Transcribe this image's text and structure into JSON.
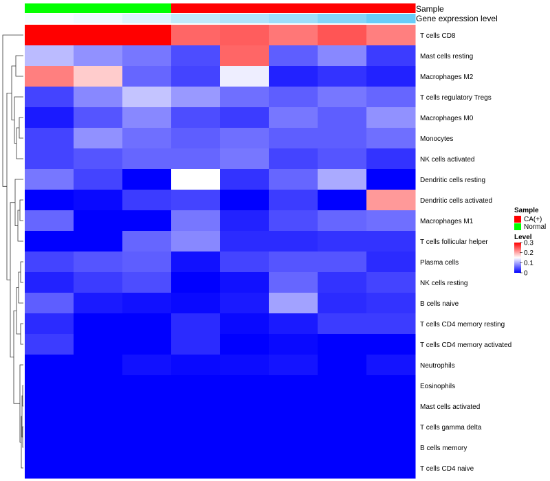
{
  "chart_data": {
    "type": "heatmap",
    "annotations": {
      "sample": {
        "label": "Sample",
        "values": [
          "Normal",
          "Normal",
          "Normal",
          "CA(+)",
          "CA(+)",
          "CA(+)",
          "CA(+)",
          "CA(+)"
        ]
      },
      "gene_expression": {
        "label": "Gene expression level",
        "values": [
          0.05,
          0.1,
          0.2,
          0.35,
          0.45,
          0.55,
          0.7,
          0.85
        ]
      }
    },
    "rows": [
      "T cells CD8",
      "Mast cells resting",
      "Macrophages M2",
      "T cells regulatory  Tregs",
      "Macrophages M0",
      "Monocytes",
      "NK cells activated",
      "Dendritic cells resting",
      "Dendritic cells activated",
      "Macrophages M1",
      "T cells follicular helper",
      "Plasma cells",
      "NK cells resting",
      "B cells naive",
      "T cells CD4 memory resting",
      "T cells CD4 memory activated",
      "Neutrophils",
      "Eosinophils",
      "Mast cells activated",
      "T cells gamma delta",
      "B cells memory",
      "T cells CD4 naive"
    ],
    "values": [
      [
        0.3,
        0.3,
        0.3,
        0.24,
        0.245,
        0.23,
        0.25,
        0.225
      ],
      [
        0.11,
        0.085,
        0.07,
        0.045,
        0.24,
        0.055,
        0.08,
        0.035
      ],
      [
        0.225,
        0.18,
        0.06,
        0.04,
        0.14,
        0.02,
        0.03,
        0.02
      ],
      [
        0.04,
        0.08,
        0.115,
        0.09,
        0.065,
        0.055,
        0.07,
        0.06
      ],
      [
        0.015,
        0.05,
        0.08,
        0.045,
        0.035,
        0.07,
        0.055,
        0.085
      ],
      [
        0.04,
        0.085,
        0.065,
        0.055,
        0.065,
        0.055,
        0.055,
        0.065
      ],
      [
        0.04,
        0.05,
        0.06,
        0.06,
        0.07,
        0.04,
        0.05,
        0.03
      ],
      [
        0.07,
        0.04,
        0.0,
        0.15,
        0.03,
        0.06,
        0.1,
        0.0
      ],
      [
        0.0,
        0.005,
        0.035,
        0.04,
        0.0,
        0.035,
        0.0,
        0.21
      ],
      [
        0.06,
        0.0,
        0.0,
        0.07,
        0.02,
        0.045,
        0.06,
        0.065
      ],
      [
        0.0,
        0.0,
        0.06,
        0.08,
        0.025,
        0.025,
        0.03,
        0.03
      ],
      [
        0.04,
        0.05,
        0.055,
        0.01,
        0.04,
        0.05,
        0.05,
        0.025
      ],
      [
        0.02,
        0.035,
        0.045,
        0.0,
        0.01,
        0.06,
        0.03,
        0.04
      ],
      [
        0.055,
        0.015,
        0.01,
        0.005,
        0.015,
        0.095,
        0.025,
        0.03
      ],
      [
        0.025,
        0.0,
        0.0,
        0.025,
        0.005,
        0.015,
        0.035,
        0.035
      ],
      [
        0.035,
        0.0,
        0.0,
        0.025,
        0.0,
        0.005,
        0.0,
        0.0
      ],
      [
        0.0,
        0.0,
        0.01,
        0.005,
        0.007,
        0.012,
        0.0,
        0.012
      ],
      [
        0.0,
        0.0,
        0.0,
        0.0,
        0.0,
        0.0,
        0.0,
        0.0
      ],
      [
        0.0,
        0.0,
        0.0,
        0.0,
        0.0,
        0.0,
        0.0,
        0.0
      ],
      [
        0.0,
        0.0,
        0.0,
        0.0,
        0.0,
        0.0,
        0.0,
        0.0
      ],
      [
        0.0,
        0.0,
        0.0,
        0.0,
        0.0,
        0.0,
        0.0,
        0.0
      ],
      [
        0.0,
        0.0,
        0.0,
        0.0,
        0.0,
        0.0,
        0.0,
        0.0
      ]
    ],
    "color_scale": {
      "low": "#0000ff",
      "mid": "#ffffff",
      "high": "#ff0000",
      "mid_value": 0.15,
      "range": [
        0,
        0.3
      ]
    },
    "legend": {
      "placement": "right",
      "sample_title": "Sample",
      "sample_entries": [
        {
          "name": "CA(+)",
          "color": "#ff0000"
        },
        {
          "name": "Normal",
          "color": "#00ff00"
        }
      ],
      "level_title": "Level",
      "level_ticks": [
        "0.3",
        "0.2",
        "0.1",
        "0"
      ],
      "level_tick_values": [
        0.3,
        0.2,
        0.1,
        0
      ]
    },
    "gene_expression_colors": {
      "low": "#ffffff",
      "high": "#4fc3f7"
    },
    "row_dendrogram": true
  }
}
